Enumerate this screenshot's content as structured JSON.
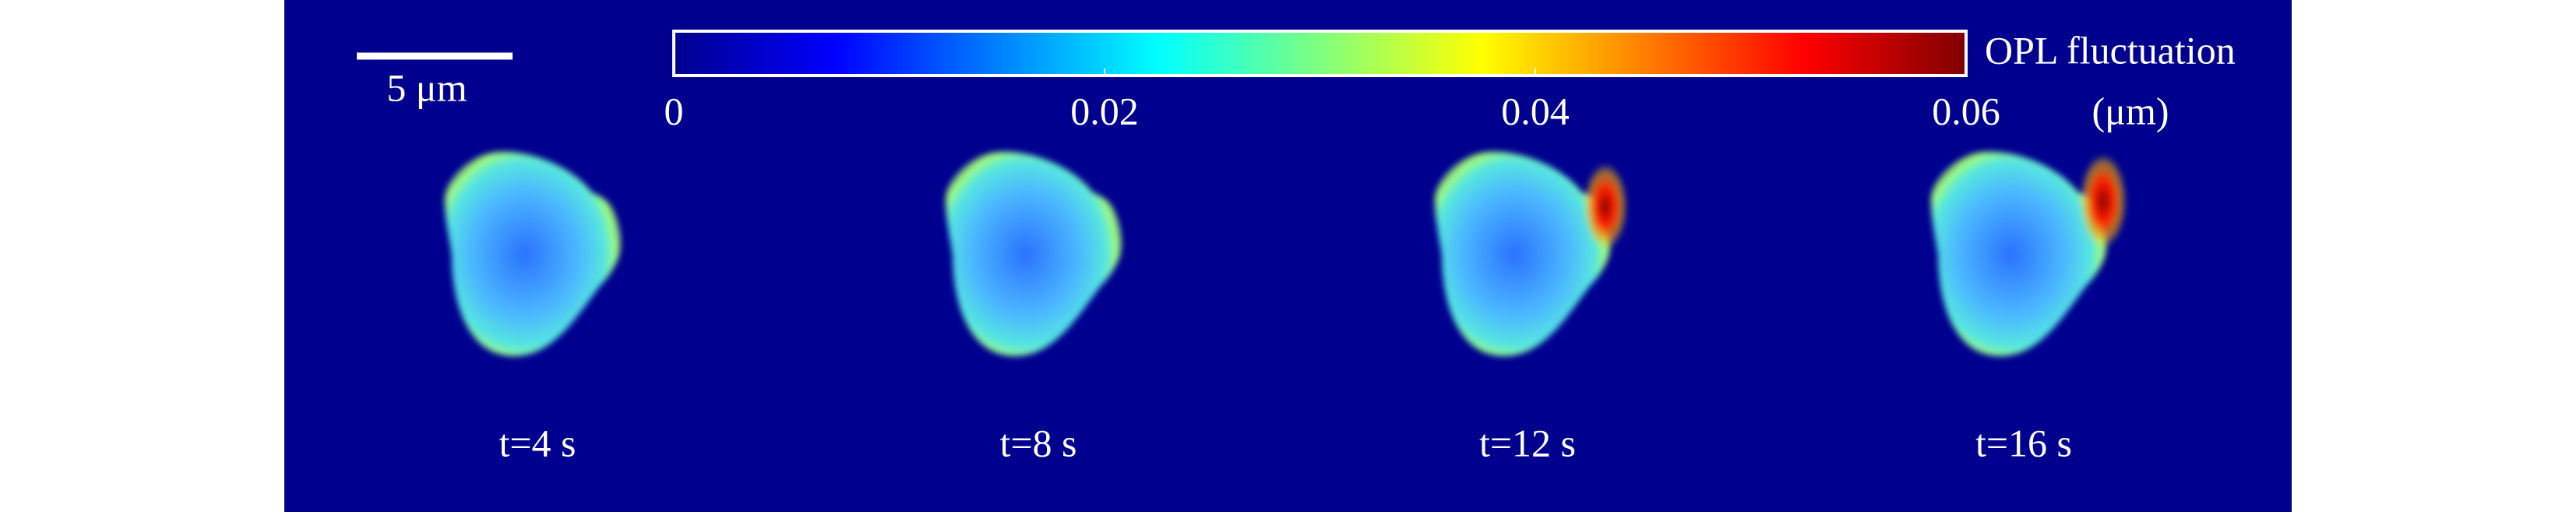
{
  "scale_bar": {
    "label": "5 μm"
  },
  "colorbar": {
    "label": "OPL  fluctuation",
    "unit": "(μm)",
    "lim": [
      0,
      0.06
    ],
    "ticks": [
      0,
      0.02,
      0.04,
      0.06
    ]
  },
  "panels": [
    {
      "label": "t=4 s"
    },
    {
      "label": "t=8 s"
    },
    {
      "label": "t=12 s"
    },
    {
      "label": "t=16 s"
    }
  ]
}
